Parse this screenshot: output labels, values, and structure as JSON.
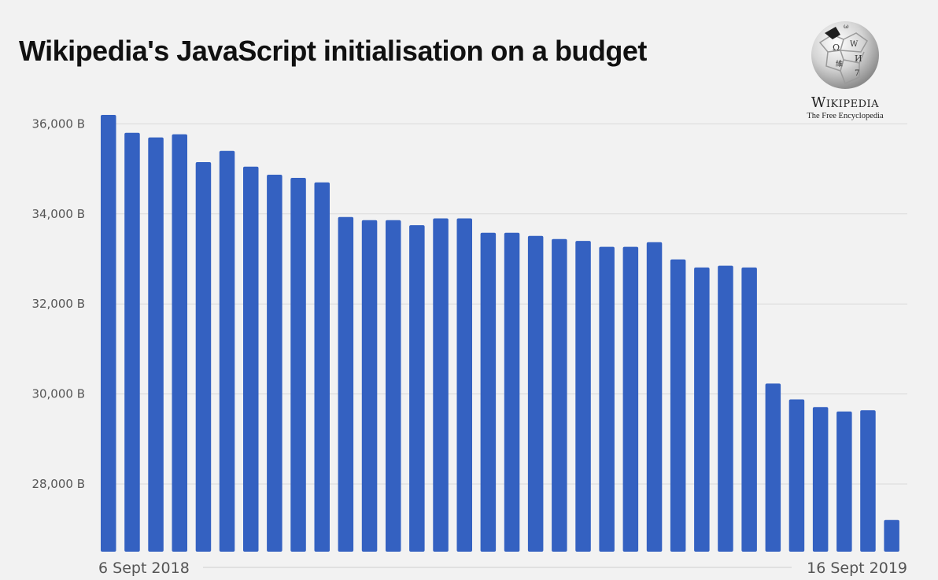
{
  "title": "Wikipedia's JavaScript initialisation on a budget",
  "logo": {
    "icon": "wikipedia-globe-icon",
    "wordmark": "Wikipedia",
    "tagline": "The Free Encyclopedia"
  },
  "colors": {
    "bar": "#3461c1",
    "grid": "#d9d9d9",
    "background": "#f2f2f2"
  },
  "chart_data": {
    "type": "bar",
    "title": "Wikipedia's JavaScript initialisation on a budget",
    "xlabel": "",
    "ylabel": "",
    "ylim": [
      26500,
      36500
    ],
    "yticks": [
      28000,
      30000,
      32000,
      34000,
      36000
    ],
    "ytick_labels": [
      "28,000 B",
      "30,000 B",
      "32,000 B",
      "34,000 B",
      "36,000 B"
    ],
    "x_start_label": "6 Sept 2018",
    "x_end_label": "16 Sept 2019",
    "grid": true,
    "values": [
      36200,
      35800,
      35700,
      35770,
      35150,
      35400,
      35050,
      34870,
      34800,
      34700,
      33930,
      33860,
      33860,
      33750,
      33900,
      33900,
      33580,
      33580,
      33510,
      33440,
      33400,
      33270,
      33270,
      33370,
      32990,
      32810,
      32850,
      32810,
      30230,
      29880,
      29710,
      29610,
      29640,
      27200
    ]
  }
}
